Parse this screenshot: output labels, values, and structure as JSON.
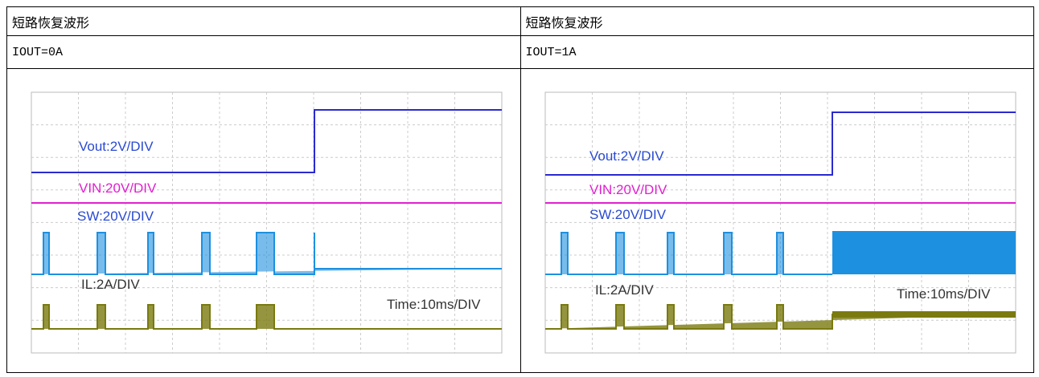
{
  "table": {
    "rows": [
      [
        "短路恢复波形",
        "短路恢复波形"
      ],
      [
        "IOUT=0A",
        "IOUT=1A"
      ]
    ]
  },
  "figures": [
    {
      "labels": [
        "Vout:2V/DIV",
        "VIN:20V/DIV",
        "SW:20V/DIV",
        "IL:2A/DIV",
        "Time:10ms/DIV"
      ]
    },
    {
      "labels": [
        "Vout:2V/DIV",
        "VIN:20V/DIV",
        "SW:20V/DIV",
        "IL:2A/DIV",
        "Time:10ms/DIV"
      ]
    }
  ]
}
